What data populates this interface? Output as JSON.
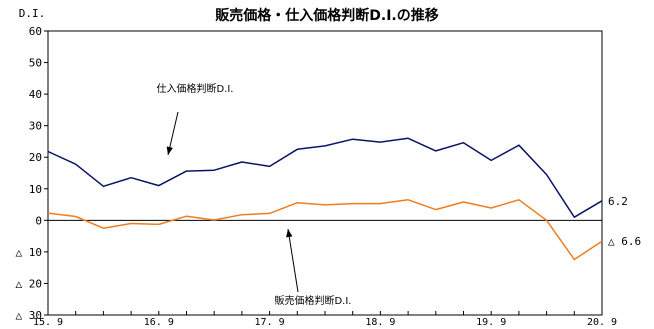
{
  "chart_data": {
    "type": "line",
    "title": "販売価格・仕入価格判断D.I.の推移",
    "ylabel": "D.I.",
    "xlabel": "",
    "ylim": [
      -30,
      60
    ],
    "y_ticks": [
      {
        "value": 60,
        "label": "60"
      },
      {
        "value": 50,
        "label": "50"
      },
      {
        "value": 40,
        "label": "40"
      },
      {
        "value": 30,
        "label": "30"
      },
      {
        "value": 20,
        "label": "20"
      },
      {
        "value": 10,
        "label": "10"
      },
      {
        "value": 0,
        "label": "0"
      },
      {
        "value": -10,
        "label": "△ 10"
      },
      {
        "value": -20,
        "label": "△ 20"
      },
      {
        "value": -30,
        "label": "△ 30"
      }
    ],
    "x_ticks": [
      {
        "index": 0,
        "label": "15. 9"
      },
      {
        "index": 4,
        "label": "16. 9"
      },
      {
        "index": 8,
        "label": "17. 9"
      },
      {
        "index": 12,
        "label": "18. 9"
      },
      {
        "index": 16,
        "label": "19. 9"
      },
      {
        "index": 20,
        "label": "20. 9"
      }
    ],
    "series": [
      {
        "name": "仕入価格判断D.I.",
        "color": "#0a1464",
        "values": [
          21.8,
          17.8,
          10.8,
          13.5,
          11.0,
          15.6,
          15.9,
          18.5,
          17.1,
          22.5,
          23.6,
          25.7,
          24.8,
          26.0,
          22.0,
          24.6,
          19.0,
          23.8,
          14.5,
          1.0,
          6.2
        ],
        "end_label": "6.2"
      },
      {
        "name": "販売価格判断D.I.",
        "color": "#f07d1e",
        "values": [
          2.3,
          1.2,
          -2.5,
          -1.0,
          -1.3,
          1.3,
          0.1,
          1.8,
          2.2,
          5.6,
          4.9,
          5.3,
          5.3,
          6.5,
          3.4,
          5.8,
          3.9,
          6.5,
          0.0,
          -12.4,
          -6.6
        ],
        "end_label": "△ 6.6"
      }
    ]
  }
}
